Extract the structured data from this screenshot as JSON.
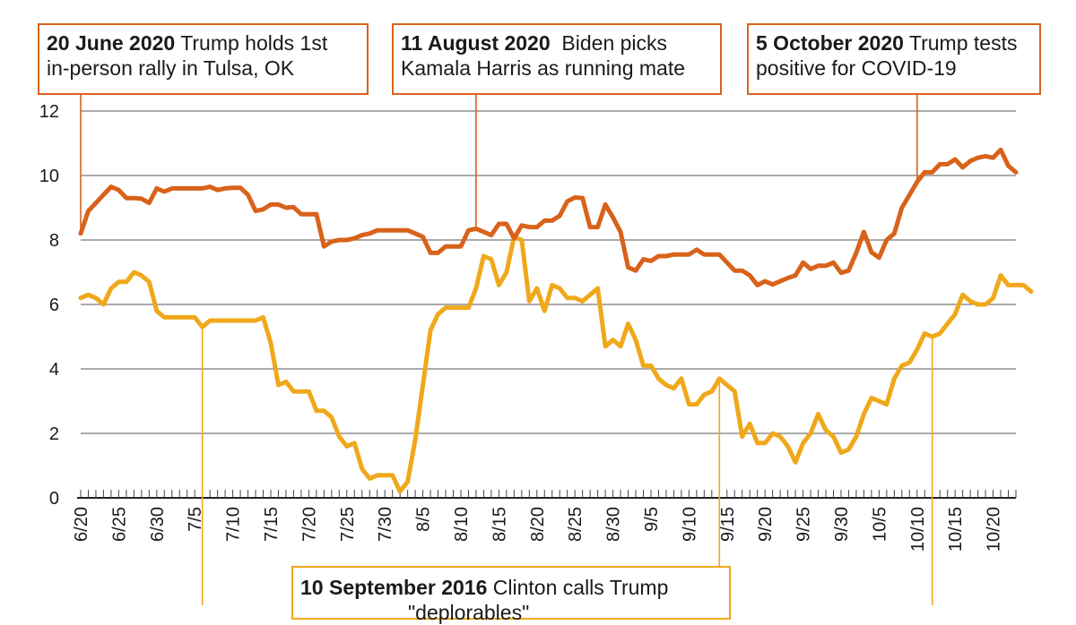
{
  "chart_data": {
    "type": "line",
    "title": "",
    "xlabel": "",
    "ylabel": "",
    "ylim": [
      0,
      12
    ],
    "yticks": [
      0,
      2,
      4,
      6,
      8,
      10,
      12
    ],
    "grid": "horizontal",
    "xtick_labels": [
      "6/20",
      "6/25",
      "6/30",
      "7/5",
      "7/10",
      "7/15",
      "7/20",
      "7/25",
      "7/30",
      "8/5",
      "8/10",
      "8/15",
      "8/20",
      "8/25",
      "8/30",
      "9/5",
      "9/10",
      "9/15",
      "9/20",
      "9/25",
      "9/30",
      "10/5",
      "10/10",
      "10/15",
      "10/20"
    ],
    "series": [
      {
        "name": "",
        "color": "#d9621b",
        "values": [
          8.2,
          8.9,
          9.15,
          9.4,
          9.65,
          9.55,
          9.3,
          9.3,
          9.28,
          9.15,
          9.6,
          9.5,
          9.6,
          9.6,
          9.6,
          9.6,
          9.6,
          9.65,
          9.55,
          9.6,
          9.62,
          9.62,
          9.4,
          8.9,
          8.95,
          9.1,
          9.1,
          9.0,
          9.02,
          8.8,
          8.8,
          8.8,
          7.8,
          7.95,
          8.0,
          8.0,
          8.05,
          8.15,
          8.2,
          8.3,
          8.3,
          8.3,
          8.3,
          8.3,
          8.2,
          8.1,
          7.6,
          7.6,
          7.8,
          7.8,
          7.8,
          8.3,
          8.35,
          8.25,
          8.15,
          8.5,
          8.5,
          8.05,
          8.45,
          8.4,
          8.4,
          8.6,
          8.6,
          8.75,
          9.2,
          9.32,
          9.3,
          8.4,
          8.4,
          9.1,
          8.7,
          8.25,
          7.15,
          7.05,
          7.4,
          7.35,
          7.5,
          7.5,
          7.55,
          7.55,
          7.55,
          7.7,
          7.55,
          7.55,
          7.55,
          7.3,
          7.05,
          7.05,
          6.9,
          6.6,
          6.72,
          6.62,
          6.72,
          6.82,
          6.9,
          7.3,
          7.1,
          7.2,
          7.2,
          7.3,
          6.98,
          7.05,
          7.6,
          8.25,
          7.62,
          7.45,
          8.0,
          8.2,
          9.0,
          9.4,
          9.8,
          10.1,
          10.1,
          10.35,
          10.35,
          10.5,
          10.25,
          10.45,
          10.55,
          10.6,
          10.55,
          10.8,
          10.3,
          10.1
        ]
      },
      {
        "name": "",
        "color": "#f0a81b",
        "values": [
          6.2,
          6.3,
          6.2,
          6.0,
          6.5,
          6.7,
          6.7,
          7.0,
          6.9,
          6.7,
          5.8,
          5.6,
          5.6,
          5.6,
          5.6,
          5.6,
          5.3,
          5.5,
          5.5,
          5.5,
          5.5,
          5.5,
          5.5,
          5.5,
          5.6,
          4.8,
          3.5,
          3.6,
          3.3,
          3.3,
          3.3,
          2.7,
          2.7,
          2.5,
          1.9,
          1.6,
          1.7,
          0.9,
          0.6,
          0.7,
          0.7,
          0.7,
          0.2,
          0.5,
          1.8,
          3.5,
          5.2,
          5.7,
          5.9,
          5.9,
          5.9,
          5.9,
          6.5,
          7.5,
          7.4,
          6.6,
          7.0,
          8.1,
          8.0,
          6.1,
          6.5,
          5.8,
          6.6,
          6.5,
          6.2,
          6.2,
          6.1,
          6.3,
          6.5,
          4.7,
          4.9,
          4.7,
          5.4,
          4.9,
          4.1,
          4.1,
          3.7,
          3.5,
          3.4,
          3.7,
          2.9,
          2.9,
          3.2,
          3.3,
          3.7,
          3.5,
          3.3,
          1.9,
          2.3,
          1.7,
          1.7,
          2.0,
          1.9,
          1.6,
          1.1,
          1.7,
          2.0,
          2.6,
          2.1,
          1.9,
          1.4,
          1.5,
          1.9,
          2.6,
          3.1,
          3.0,
          2.9,
          3.7,
          4.1,
          4.2,
          4.6,
          5.1,
          5.0,
          5.1,
          5.4,
          5.7,
          6.3,
          6.1,
          6.0,
          6.0,
          6.2,
          6.9,
          6.6,
          6.6,
          6.6,
          6.4
        ]
      }
    ],
    "annotations": [
      {
        "bold": "20 June 2020",
        "text": " Trump holds 1st",
        "text2": "in-person rally in Tulsa, OK",
        "series": 0,
        "index": 0
      },
      {
        "bold": "11 August 2020",
        "text": "  Biden picks",
        "text2": "Kamala Harris as running mate",
        "series": 0,
        "index": 52
      },
      {
        "bold": "5 October 2020",
        "text": " Trump tests",
        "text2": "positive for COVID-19",
        "series": 0,
        "index": 110
      },
      {
        "bold": "10 September 2016",
        "text": " Clinton calls Trump",
        "text2": "\"deplorables\"",
        "series": 1,
        "index": 84
      },
      {
        "series": 1,
        "index": 16
      },
      {
        "series": 1,
        "index": 112
      }
    ]
  }
}
